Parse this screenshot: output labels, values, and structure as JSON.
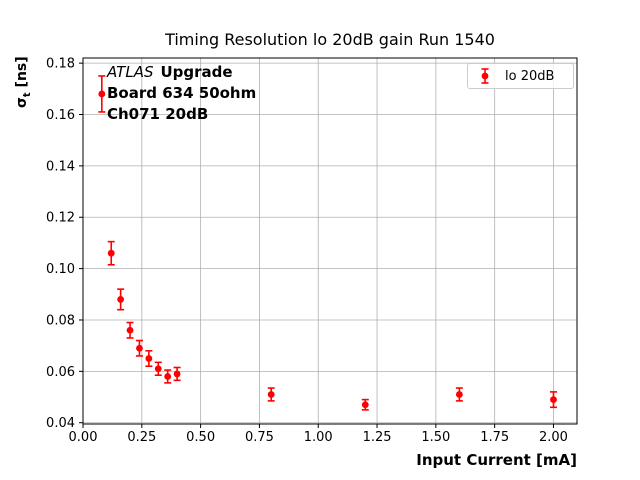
{
  "chart_data": {
    "type": "scatter",
    "title": "Timing Resolution lo 20dB gain Run 1540",
    "xlabel": "Input Current [mA]",
    "ylabel": {
      "base": "σ",
      "sub": "t",
      "rest": " [ns]"
    },
    "xlim": [
      0.0,
      2.1
    ],
    "ylim": [
      0.0395,
      0.182
    ],
    "x_ticks": [
      0.0,
      0.25,
      0.5,
      0.75,
      1.0,
      1.25,
      1.5,
      1.75,
      2.0
    ],
    "x_tick_labels": [
      "0.00",
      "0.25",
      "0.50",
      "0.75",
      "1.00",
      "1.25",
      "1.50",
      "1.75",
      "2.00"
    ],
    "y_ticks": [
      0.04,
      0.06,
      0.08,
      0.1,
      0.12,
      0.14,
      0.16,
      0.18
    ],
    "y_tick_labels": [
      "0.04",
      "0.06",
      "0.08",
      "0.10",
      "0.12",
      "0.14",
      "0.16",
      "0.18"
    ],
    "grid": true,
    "grid_color": "#b0b0b0",
    "legend": {
      "position": "upper right",
      "label": "lo 20dB",
      "marker_color": "#ff0000"
    },
    "annotation": {
      "atlas": "ATLAS",
      "upgrade": "Upgrade",
      "line2": "Board 634 50ohm",
      "line3": "Ch071 20dB"
    },
    "series": [
      {
        "name": "lo 20dB",
        "color": "#ff0000",
        "marker": "circle-with-errorbar",
        "x": [
          0.08,
          0.12,
          0.16,
          0.2,
          0.24,
          0.28,
          0.32,
          0.36,
          0.4,
          0.8,
          1.2,
          1.6,
          2.0
        ],
        "y": [
          0.168,
          0.106,
          0.088,
          0.076,
          0.069,
          0.065,
          0.061,
          0.058,
          0.059,
          0.051,
          0.047,
          0.051,
          0.049
        ],
        "yerr": [
          0.007,
          0.0045,
          0.004,
          0.003,
          0.003,
          0.003,
          0.0025,
          0.0025,
          0.0025,
          0.0025,
          0.002,
          0.0025,
          0.003
        ]
      }
    ]
  }
}
